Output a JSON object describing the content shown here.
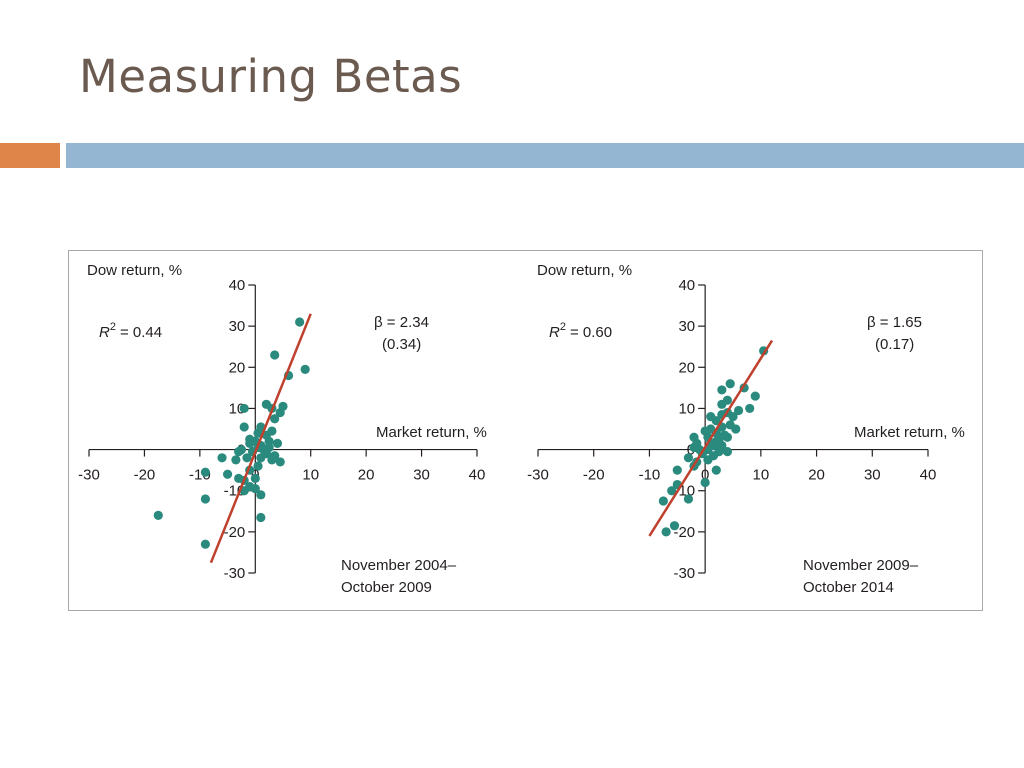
{
  "slide": {
    "title": "Measuring Betas"
  },
  "colors": {
    "title": "#6b5a50",
    "accent_orange": "#df8549",
    "accent_blue": "#94b6d2",
    "point": "#2a8a7e",
    "line": "#c0402e"
  },
  "chart_data": [
    {
      "type": "scatter",
      "ylabel": "Dow return, %",
      "xlabel": "Market return, %",
      "r_squared_symbol": "R",
      "r_squared_sup": "2",
      "r_squared_value": "= 0.44",
      "beta_text": "β = 2.34",
      "beta_se_text": "(0.34)",
      "period_line1": "November 2004–",
      "period_line2": "October 2009",
      "xlim": [
        -30,
        40
      ],
      "ylim": [
        -30,
        40
      ],
      "xticks": [
        "-30",
        "-20",
        "-10",
        "0",
        "10",
        "20",
        "30",
        "40"
      ],
      "yticks": [
        "40",
        "30",
        "20",
        "10",
        "0",
        "-10",
        "-20",
        "-30"
      ],
      "regression": {
        "x": [
          -8,
          10
        ],
        "y": [
          -27.5,
          33
        ]
      },
      "points": [
        [
          8,
          31
        ],
        [
          3.5,
          23
        ],
        [
          6,
          18
        ],
        [
          9,
          19.5
        ],
        [
          -2,
          10
        ],
        [
          2,
          11
        ],
        [
          5,
          10.5
        ],
        [
          3,
          10
        ],
        [
          4.5,
          9
        ],
        [
          3.5,
          7.5
        ],
        [
          -2,
          5.5
        ],
        [
          1,
          5.5
        ],
        [
          3,
          4.5
        ],
        [
          0.5,
          4
        ],
        [
          -1,
          2.5
        ],
        [
          2.5,
          2
        ],
        [
          4,
          1.5
        ],
        [
          -3,
          -0.5
        ],
        [
          0.5,
          0.5
        ],
        [
          2,
          -1
        ],
        [
          -1.5,
          -2
        ],
        [
          1,
          -2
        ],
        [
          3,
          -2.5
        ],
        [
          4.5,
          -3
        ],
        [
          -6,
          -2
        ],
        [
          -3.5,
          -2.5
        ],
        [
          0.5,
          -4
        ],
        [
          -1,
          -5
        ],
        [
          -9,
          -5.5
        ],
        [
          -5,
          -6
        ],
        [
          -3,
          -7
        ],
        [
          -2,
          -7.5
        ],
        [
          0,
          -7
        ],
        [
          -1,
          -9
        ],
        [
          -2,
          -10
        ],
        [
          0,
          -9.5
        ],
        [
          1,
          -11
        ],
        [
          -9,
          -12
        ],
        [
          1,
          -16.5
        ],
        [
          -17.5,
          -16
        ],
        [
          -9,
          -23
        ],
        [
          2,
          3.5
        ],
        [
          1.5,
          0
        ],
        [
          -0.5,
          -0.5
        ],
        [
          2.5,
          0.5
        ],
        [
          -1,
          1.5
        ],
        [
          0,
          2
        ],
        [
          3.5,
          -1.5
        ],
        [
          -2.5,
          0
        ],
        [
          1,
          1
        ]
      ]
    },
    {
      "type": "scatter",
      "ylabel": "Dow return, %",
      "xlabel": "Market return, %",
      "r_squared_symbol": "R",
      "r_squared_sup": "2",
      "r_squared_value": "= 0.60",
      "beta_text": "β = 1.65",
      "beta_se_text": "(0.17)",
      "period_line1": "November 2009–",
      "period_line2": "October 2014",
      "xlim": [
        -30,
        40
      ],
      "ylim": [
        -30,
        40
      ],
      "xticks": [
        "-30",
        "-20",
        "-10",
        "0",
        "10",
        "20",
        "30",
        "40"
      ],
      "yticks": [
        "40",
        "30",
        "20",
        "10",
        "0",
        "-10",
        "-20",
        "-30"
      ],
      "regression": {
        "x": [
          -10,
          12
        ],
        "y": [
          -21,
          26.5
        ]
      },
      "points": [
        [
          10.5,
          24
        ],
        [
          4.5,
          16
        ],
        [
          7,
          15
        ],
        [
          3,
          14.5
        ],
        [
          9,
          13
        ],
        [
          4,
          12
        ],
        [
          3,
          11
        ],
        [
          8,
          10
        ],
        [
          6,
          9.5
        ],
        [
          4,
          9
        ],
        [
          1,
          8
        ],
        [
          3,
          8.5
        ],
        [
          5,
          8
        ],
        [
          2,
          7
        ],
        [
          4.5,
          6
        ],
        [
          1,
          5
        ],
        [
          3,
          5.5
        ],
        [
          5.5,
          5
        ],
        [
          0,
          4.5
        ],
        [
          2,
          4
        ],
        [
          -2,
          3
        ],
        [
          0.5,
          3
        ],
        [
          2.5,
          2.5
        ],
        [
          4,
          3
        ],
        [
          -1.5,
          1.5
        ],
        [
          1.5,
          1
        ],
        [
          3,
          1
        ],
        [
          -2,
          0.5
        ],
        [
          0.5,
          0
        ],
        [
          2.5,
          -0.5
        ],
        [
          -0.5,
          -1
        ],
        [
          1.5,
          -1.5
        ],
        [
          4,
          -0.5
        ],
        [
          -3,
          -2
        ],
        [
          0.5,
          -2.5
        ],
        [
          -1.5,
          -3
        ],
        [
          -2,
          -4
        ],
        [
          2,
          -5
        ],
        [
          -5,
          -5
        ],
        [
          0,
          -8
        ],
        [
          -5,
          -8.5
        ],
        [
          -6,
          -10
        ],
        [
          -3,
          -12
        ],
        [
          -7.5,
          -12.5
        ],
        [
          -5.5,
          -18.5
        ],
        [
          -7,
          -20
        ],
        [
          1,
          1.5
        ],
        [
          2,
          2
        ],
        [
          3.5,
          3.5
        ],
        [
          -1,
          0
        ]
      ]
    }
  ]
}
